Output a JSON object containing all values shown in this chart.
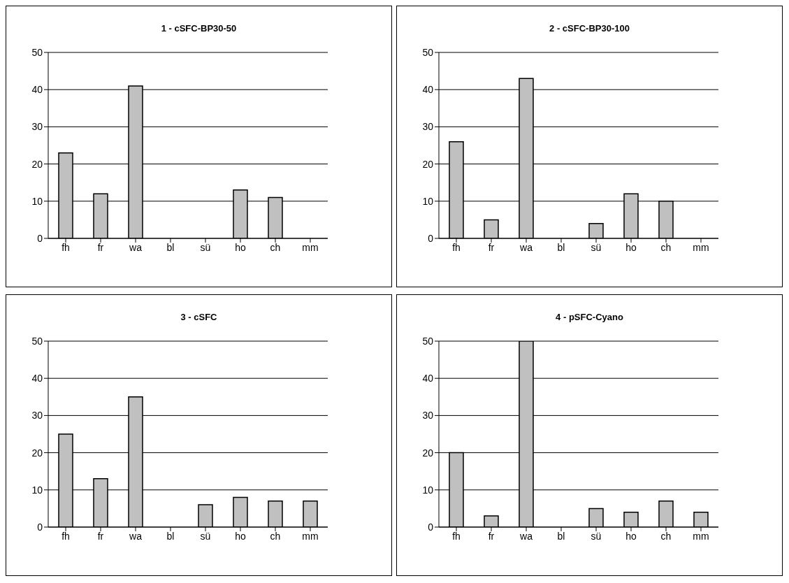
{
  "chart_data": [
    {
      "type": "bar",
      "title": "1 - cSFC-BP30-50",
      "categories": [
        "fh",
        "fr",
        "wa",
        "bl",
        "sü",
        "ho",
        "ch",
        "mm"
      ],
      "values": [
        23,
        12,
        41,
        0,
        0,
        13,
        11,
        0
      ],
      "color": "#c0c0c0",
      "ylim": [
        0,
        50
      ],
      "yticks": [
        0,
        10,
        20,
        30,
        40,
        50
      ],
      "grid": "y"
    },
    {
      "type": "bar",
      "title": "2 - cSFC-BP30-100",
      "categories": [
        "fh",
        "fr",
        "wa",
        "bl",
        "sü",
        "ho",
        "ch",
        "mm"
      ],
      "values": [
        26,
        5,
        43,
        0,
        4,
        12,
        10,
        0
      ],
      "color": "#c0c0c0",
      "ylim": [
        0,
        50
      ],
      "yticks": [
        0,
        10,
        20,
        30,
        40,
        50
      ],
      "grid": "y"
    },
    {
      "type": "bar",
      "title": "3 - cSFC",
      "categories": [
        "fh",
        "fr",
        "wa",
        "bl",
        "sü",
        "ho",
        "ch",
        "mm"
      ],
      "values": [
        25,
        13,
        35,
        0,
        6,
        8,
        7,
        7
      ],
      "color": "#c0c0c0",
      "ylim": [
        0,
        50
      ],
      "yticks": [
        0,
        10,
        20,
        30,
        40,
        50
      ],
      "grid": "y"
    },
    {
      "type": "bar",
      "title": "4 - pSFC-Cyano",
      "categories": [
        "fh",
        "fr",
        "wa",
        "bl",
        "sü",
        "ho",
        "ch",
        "mm"
      ],
      "values": [
        20,
        3,
        50,
        0,
        5,
        4,
        7,
        4
      ],
      "color": "#c0c0c0",
      "ylim": [
        0,
        50
      ],
      "yticks": [
        0,
        10,
        20,
        30,
        40,
        50
      ],
      "grid": "y"
    }
  ]
}
